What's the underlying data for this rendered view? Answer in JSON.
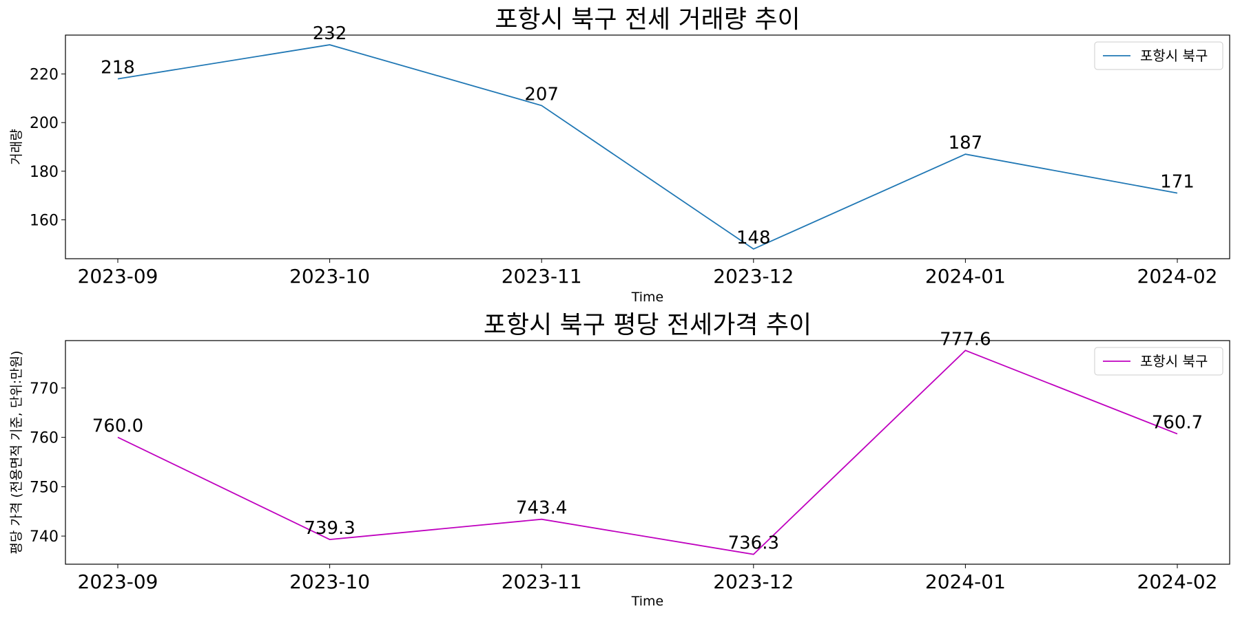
{
  "chart_data": [
    {
      "type": "line",
      "title": "포항시 북구 전세 거래량 추이",
      "xlabel": "Time",
      "ylabel": "거래량",
      "x": [
        "2023-09",
        "2023-10",
        "2023-11",
        "2023-12",
        "2024-01",
        "2024-02"
      ],
      "ylim": [
        144,
        236
      ],
      "yticks": [
        "160",
        "180",
        "200",
        "220"
      ],
      "data_labels": [
        "218",
        "232",
        "207",
        "148",
        "187",
        "171"
      ],
      "series": [
        {
          "name": "포항시 북구",
          "color": "#1f77b4",
          "values": [
            218,
            232,
            207,
            148,
            187,
            171
          ]
        }
      ],
      "legend": "top-right",
      "grid": false
    },
    {
      "type": "line",
      "title": "포항시 북구 평당 전세가격 추이",
      "xlabel": "Time",
      "ylabel": "평당 가격 (전용면적 기준, 단위:만원)",
      "x": [
        "2023-09",
        "2023-10",
        "2023-11",
        "2023-12",
        "2024-01",
        "2024-02"
      ],
      "ylim": [
        734.3,
        779.6
      ],
      "yticks": [
        "740",
        "750",
        "760",
        "770"
      ],
      "data_labels": [
        "760.0",
        "739.3",
        "743.4",
        "736.3",
        "777.6",
        "760.7"
      ],
      "series": [
        {
          "name": "포항시 북구",
          "color": "#bf00bf",
          "values": [
            760.0,
            739.3,
            743.4,
            736.3,
            777.6,
            760.7
          ]
        }
      ],
      "legend": "top-right",
      "grid": false
    }
  ]
}
